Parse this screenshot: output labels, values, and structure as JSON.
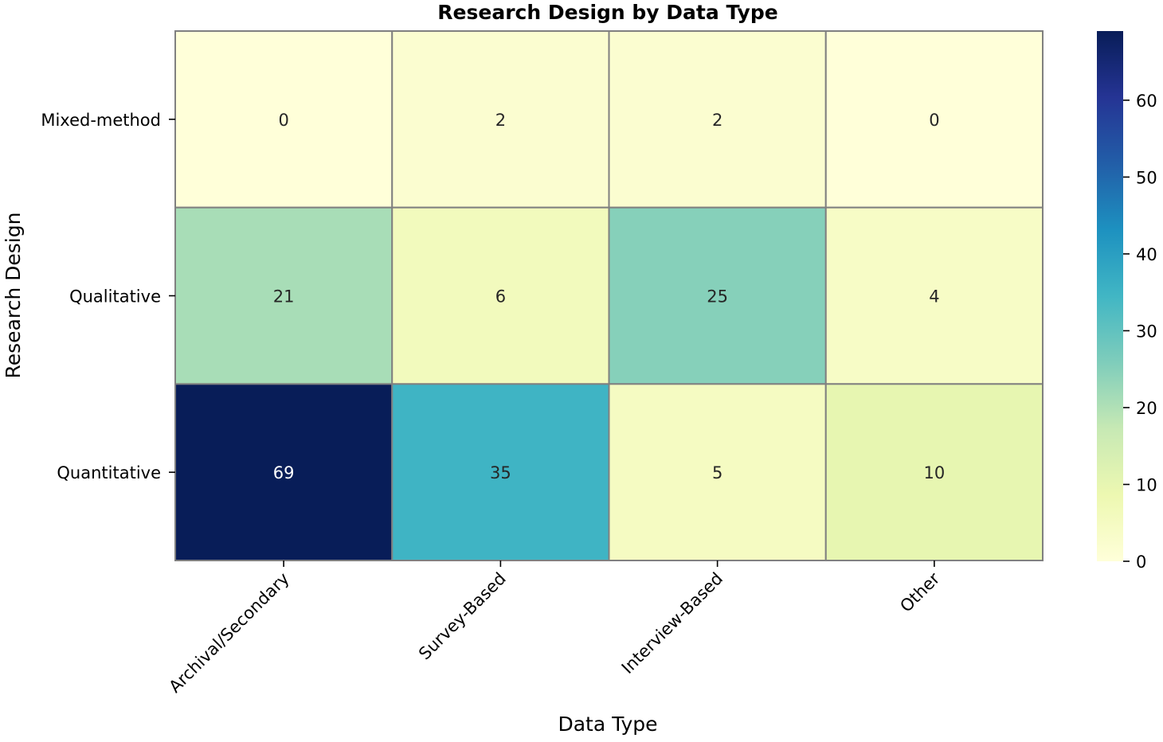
{
  "chart_data": {
    "type": "heatmap",
    "title": "Research Design by Data Type",
    "xlabel": "Data Type",
    "ylabel": "Research Design",
    "x_categories": [
      "Archival/Secondary",
      "Survey-Based",
      "Interview-Based",
      "Other"
    ],
    "y_categories": [
      "Mixed-method",
      "Qualitative",
      "Quantitative"
    ],
    "values": [
      [
        0,
        2,
        2,
        0
      ],
      [
        21,
        6,
        25,
        4
      ],
      [
        69,
        35,
        5,
        10
      ]
    ],
    "colorbar": {
      "min": 0,
      "max": 69,
      "ticks": [
        0,
        10,
        20,
        30,
        40,
        50,
        60
      ],
      "colormap": "YlGnBu",
      "colors": [
        "#ffffd9",
        "#edf8b1",
        "#c7e9b4",
        "#7fcdbb",
        "#41b6c4",
        "#1d91c0",
        "#225ea8",
        "#253494",
        "#081d58"
      ]
    },
    "grid_line_color": "#808080",
    "annotations": true
  }
}
